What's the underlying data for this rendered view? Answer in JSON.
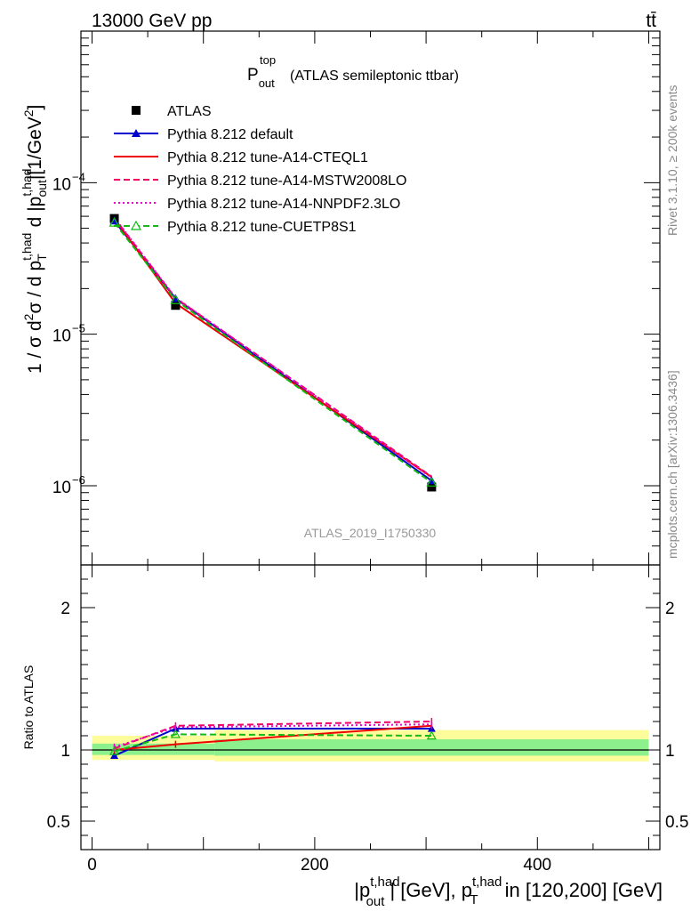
{
  "header": {
    "left": "13000 GeV pp",
    "right": "tt̄"
  },
  "side": {
    "top": "Rivet 3.1.10, ≥ 200k events",
    "bottom": "mcplots.cern.ch [arXiv:1306.3436]"
  },
  "chart_data": [
    {
      "type": "line",
      "title": "P_out^top (ATLAS semileptonic ttbar)",
      "title_main": "P",
      "title_sup": "top",
      "title_sub": "out",
      "title_rest": "(ATLAS semileptonic ttbar)",
      "ylabel": "1 / σ d²σ / d p_T^{t,had} d |p_out^{t,had}| [1/GeV²]",
      "ylabel_parts": {
        "a": "1 / σ d",
        "a_sup": "2",
        "b": "σ / d p",
        "b_sup": "t,had",
        "b_sub": "T",
        "c": " d |p",
        "c_sup": "t,had",
        "c_sub": "out",
        "d": "|[1/GeV",
        "d_sup": "2",
        "e": "]"
      },
      "yscale": "log",
      "ylim": [
        3e-07,
        0.001
      ],
      "xlim": [
        -10,
        510
      ],
      "yticks": [
        {
          "value": 1e-06,
          "base": "10",
          "exp": "−6"
        },
        {
          "value": 1e-05,
          "base": "10",
          "exp": "−5"
        },
        {
          "value": 0.0001,
          "base": "10",
          "exp": "−4"
        }
      ],
      "watermark": "ATLAS_2019_I1750330",
      "x": [
        20,
        75,
        305
      ],
      "series": [
        {
          "name": "ATLAS",
          "values": [
            5.8e-05,
            1.55e-05,
            9.8e-07
          ],
          "color": "#000000",
          "style": "data"
        },
        {
          "name": "Pythia 8.212 default",
          "values": [
            5.6e-05,
            1.72e-05,
            1.08e-06
          ],
          "color": "#0000cc",
          "style": "solid",
          "marker": "triangle-filled"
        },
        {
          "name": "Pythia 8.212 tune-A14-CTEQL1",
          "values": [
            5.8e-05,
            1.6e-05,
            1.14e-06
          ],
          "color": "#ee0000",
          "style": "solid"
        },
        {
          "name": "Pythia 8.212 tune-A14-MSTW2008LO",
          "values": [
            5.85e-05,
            1.73e-05,
            1.15e-06
          ],
          "color": "#ee0066",
          "style": "dashed"
        },
        {
          "name": "Pythia 8.212 tune-A14-NNPDF2.3LO",
          "values": [
            5.9e-05,
            1.74e-05,
            1.13e-06
          ],
          "color": "#ee00cc",
          "style": "dotted"
        },
        {
          "name": "Pythia 8.212 tune-CUETP8S1",
          "values": [
            5.45e-05,
            1.68e-05,
            1.05e-06
          ],
          "color": "#11bb11",
          "style": "dashed",
          "marker": "triangle-open"
        }
      ]
    },
    {
      "type": "line",
      "title": "Ratio to ATLAS",
      "ylabel": "Ratio to ATLAS",
      "xlabel": "|p_out^{t,had}| [GeV], p_T^{t,had} in [120,200] [GeV]",
      "xlabel_parts": {
        "a": "|p",
        "a_sup": "t,had",
        "a_sub": "out",
        "b": "| [GeV], p",
        "b_sup": "t,had",
        "b_sub": "T",
        "c": " in [120,200] [GeV]"
      },
      "ylim": [
        0.3,
        2.3
      ],
      "xlim": [
        -10,
        510
      ],
      "yticks": [
        {
          "value": 0.5,
          "label": "0.5"
        },
        {
          "value": 1,
          "label": "1"
        },
        {
          "value": 2,
          "label": "2"
        }
      ],
      "xticks": [
        {
          "value": 0,
          "label": "0"
        },
        {
          "value": 200,
          "label": "200"
        },
        {
          "value": 400,
          "label": "400"
        }
      ],
      "bands": [
        {
          "x0": 0,
          "x1": 110,
          "inner": [
            0.965,
            1.045
          ],
          "outer": [
            0.93,
            1.1
          ]
        },
        {
          "x0": 110,
          "x1": 500,
          "inner": [
            0.96,
            1.075
          ],
          "outer": [
            0.92,
            1.14
          ]
        }
      ],
      "x": [
        20,
        75,
        305
      ],
      "series": [
        {
          "name": "Pythia 8.212 default",
          "values": [
            0.96,
            1.15,
            1.15
          ],
          "color": "#0000cc",
          "style": "solid"
        },
        {
          "name": "Pythia 8.212 tune-A14-CTEQL1",
          "values": [
            1.0,
            1.04,
            1.17
          ],
          "color": "#ee0000",
          "style": "solid"
        },
        {
          "name": "Pythia 8.212 tune-A14-MSTW2008LO",
          "values": [
            1.01,
            1.17,
            1.2
          ],
          "color": "#ee0066",
          "style": "dashed"
        },
        {
          "name": "Pythia 8.212 tune-A14-NNPDF2.3LO",
          "values": [
            1.02,
            1.16,
            1.18
          ],
          "color": "#ee00cc",
          "style": "dotted"
        },
        {
          "name": "Pythia 8.212 tune-CUETP8S1",
          "values": [
            0.99,
            1.11,
            1.1
          ],
          "color": "#11bb11",
          "style": "dashed"
        }
      ]
    }
  ]
}
